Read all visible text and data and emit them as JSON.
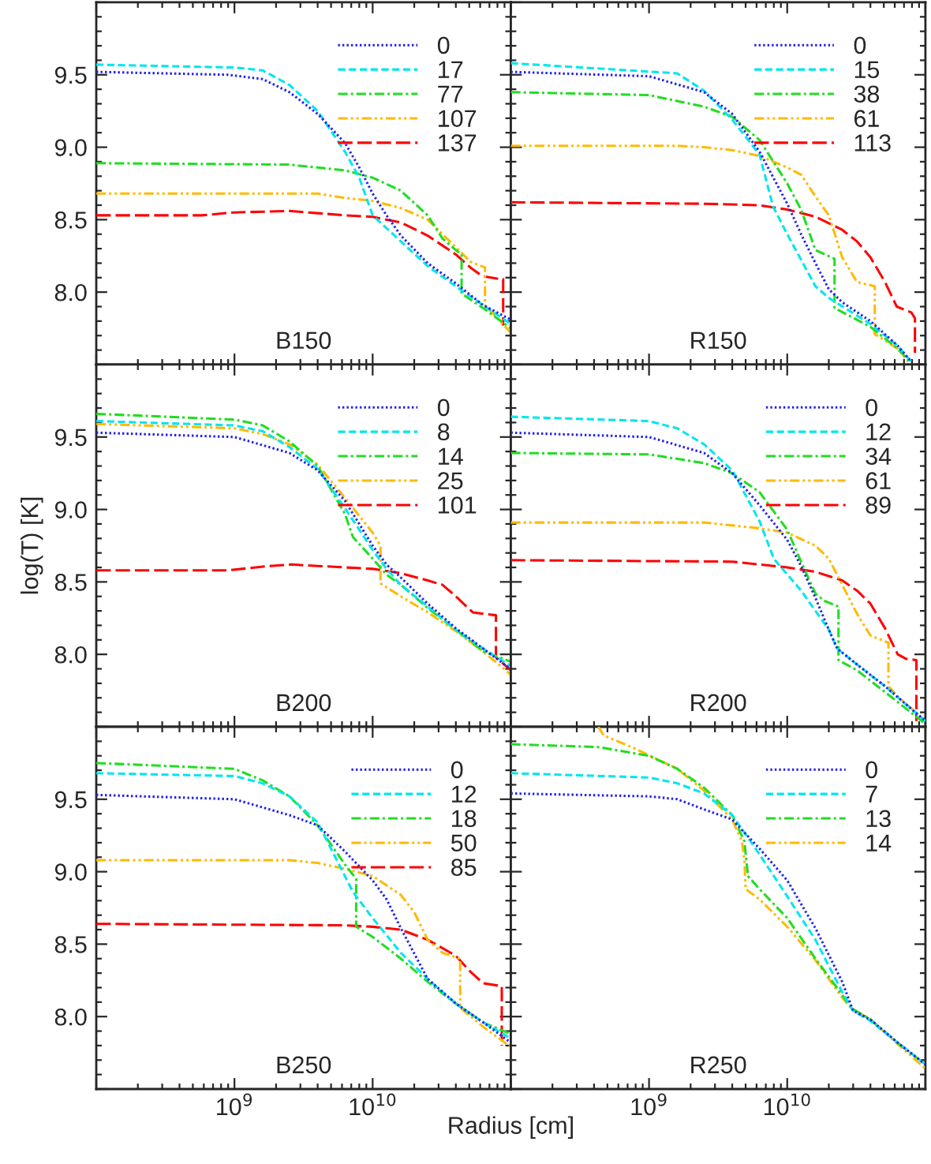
{
  "chart_data": [
    {
      "type": "line",
      "ylabel": null,
      "annotations": [
        "B150"
      ],
      "log": "x",
      "xlim": [
        100000000.0,
        100000000000.0
      ],
      "ylim": [
        7.5,
        10.0
      ],
      "xticks": [
        {
          "value": 100000000.0,
          "label": null
        },
        {
          "value": 1000000000.0,
          "label": null
        },
        {
          "value": 10000000000.0,
          "label": null
        },
        {
          "value": 100000000000.0,
          "label": null
        }
      ],
      "yticks": [
        {
          "value": 7.5,
          "label": null
        },
        {
          "value": 8.0,
          "label": "8.0"
        },
        {
          "value": 8.5,
          "label": "8.5"
        },
        {
          "value": 9.0,
          "label": "9.0"
        },
        {
          "value": 9.5,
          "label": "9.5"
        },
        {
          "value": 10.0,
          "label": null
        }
      ],
      "tick_labels": "y",
      "legend": "top right",
      "grid": false,
      "series": [
        {
          "name": "0",
          "color": "#2222ee",
          "line_style": "dotted",
          "x": [
            100000000.0,
            900000000.0,
            1600000000.0,
            2500000000.0,
            4000000000.0,
            6300000000.0,
            8000000000.0,
            10000000000.0,
            12600000000.0,
            16000000000.0,
            25000000000.0,
            40000000000.0,
            63000000000.0,
            100000000000.0
          ],
          "values": [
            9.52,
            9.5,
            9.47,
            9.38,
            9.23,
            9.03,
            8.86,
            8.68,
            8.53,
            8.39,
            8.2,
            8.06,
            7.91,
            7.81
          ]
        },
        {
          "name": "17",
          "color": "#00e5ee",
          "line_style": "dashed",
          "x": [
            100000000.0,
            1000000000.0,
            1600000000.0,
            2500000000.0,
            4000000000.0,
            6300000000.0,
            8000000000.0,
            10000000000.0,
            16000000000.0,
            25000000000.0,
            40000000000.0,
            63000000000.0,
            100000000000.0
          ],
          "values": [
            9.57,
            9.55,
            9.53,
            9.43,
            9.25,
            8.97,
            8.79,
            8.53,
            8.35,
            8.18,
            8.04,
            7.91,
            7.78
          ]
        },
        {
          "name": "77",
          "color": "#22dd22",
          "line_style": "dashdot",
          "x": [
            100000000.0,
            2500000000.0,
            6300000000.0,
            10000000000.0,
            16000000000.0,
            25000000000.0,
            32000000000.0,
            40000000000.0,
            44000000000.0,
            44000000000.0,
            63000000000.0,
            100000000000.0
          ],
          "values": [
            8.89,
            8.88,
            8.84,
            8.79,
            8.7,
            8.53,
            8.37,
            8.29,
            8.26,
            7.99,
            7.89,
            7.75
          ]
        },
        {
          "name": "107",
          "color": "#ffba00",
          "line_style": "dashdotdot",
          "x": [
            100000000.0,
            4000000000.0,
            6300000000.0,
            10000000000.0,
            16000000000.0,
            25000000000.0,
            32000000000.0,
            40000000000.0,
            51000000000.0,
            65000000000.0,
            65000000000.0,
            100000000000.0
          ],
          "values": [
            8.68,
            8.68,
            8.65,
            8.63,
            8.58,
            8.5,
            8.4,
            8.31,
            8.21,
            8.17,
            7.91,
            7.72
          ]
        },
        {
          "name": "137",
          "color": "#ff0000",
          "line_style": "longdash",
          "x": [
            100000000.0,
            580000000.0,
            1000000000.0,
            2500000000.0,
            6300000000.0,
            10000000000.0,
            16000000000.0,
            25000000000.0,
            40000000000.0,
            51000000000.0,
            62000000000.0,
            84000000000.0,
            88000000000.0,
            88000000000.0
          ],
          "values": [
            8.53,
            8.53,
            8.55,
            8.56,
            8.53,
            8.52,
            8.48,
            8.39,
            8.26,
            8.17,
            8.11,
            8.09,
            8.09,
            7.77
          ]
        }
      ]
    },
    {
      "type": "line",
      "annotations": [
        "R150"
      ],
      "log": "x",
      "xlim": [
        100000000.0,
        100000000000.0
      ],
      "ylim": [
        7.5,
        10.0
      ],
      "xticks": [
        {
          "value": 100000000.0,
          "label": null
        },
        {
          "value": 1000000000.0,
          "label": null
        },
        {
          "value": 10000000000.0,
          "label": null
        },
        {
          "value": 100000000000.0,
          "label": null
        }
      ],
      "yticks": [
        {
          "value": 7.5,
          "label": null
        },
        {
          "value": 8.0,
          "label": null
        },
        {
          "value": 8.5,
          "label": null
        },
        {
          "value": 9.0,
          "label": null
        },
        {
          "value": 9.5,
          "label": null
        },
        {
          "value": 10.0,
          "label": null
        }
      ],
      "tick_labels": false,
      "legend": "top right",
      "grid": false,
      "series": [
        {
          "name": "0",
          "color": "#2222ee",
          "line_style": "dotted",
          "x": [
            100000000.0,
            1000000000.0,
            2500000000.0,
            4000000000.0,
            6300000000.0,
            10000000000.0,
            12600000000.0,
            16000000000.0,
            20000000000.0,
            25000000000.0,
            40000000000.0,
            63000000000.0,
            79000000000.0
          ],
          "values": [
            9.52,
            9.49,
            9.38,
            9.23,
            8.97,
            8.61,
            8.4,
            8.2,
            8.02,
            7.93,
            7.8,
            7.63,
            7.52
          ]
        },
        {
          "name": "15",
          "color": "#00e5ee",
          "line_style": "dashed",
          "x": [
            100000000.0,
            1600000000.0,
            2500000000.0,
            4000000000.0,
            6300000000.0,
            7900000000.0,
            10000000000.0,
            16000000000.0,
            20000000000.0,
            40000000000.0,
            63000000000.0,
            79000000000.0
          ],
          "values": [
            9.58,
            9.51,
            9.39,
            9.19,
            8.95,
            8.59,
            8.4,
            8.04,
            7.96,
            7.78,
            7.63,
            7.52
          ]
        },
        {
          "name": "38",
          "color": "#22dd22",
          "line_style": "dashdot",
          "x": [
            100000000.0,
            1000000000.0,
            2500000000.0,
            4000000000.0,
            6300000000.0,
            10000000000.0,
            12600000000.0,
            16000000000.0,
            22000000000.0,
            22000000000.0,
            40000000000.0,
            63000000000.0,
            77000000000.0
          ],
          "values": [
            9.38,
            9.36,
            9.28,
            9.21,
            9.05,
            8.75,
            8.57,
            8.29,
            8.23,
            7.89,
            7.76,
            7.61,
            7.52
          ]
        },
        {
          "name": "61",
          "color": "#ffba00",
          "line_style": "dashdotdot",
          "x": [
            100000000.0,
            1600000000.0,
            2500000000.0,
            4000000000.0,
            6300000000.0,
            10000000000.0,
            12600000000.0,
            16000000000.0,
            20000000000.0,
            25000000000.0,
            32000000000.0,
            43000000000.0,
            43000000000.0,
            63000000000.0,
            75000000000.0
          ],
          "values": [
            9.01,
            9.01,
            9.0,
            8.98,
            8.94,
            8.86,
            8.81,
            8.66,
            8.53,
            8.24,
            8.07,
            8.04,
            7.71,
            7.61,
            7.52
          ]
        },
        {
          "name": "113",
          "color": "#ff0000",
          "line_style": "longdash",
          "x": [
            100000000.0,
            2500000000.0,
            6300000000.0,
            10000000000.0,
            16000000000.0,
            25000000000.0,
            32000000000.0,
            40000000000.0,
            51000000000.0,
            62000000000.0,
            79000000000.0,
            84000000000.0,
            84000000000.0
          ],
          "values": [
            8.62,
            8.61,
            8.6,
            8.57,
            8.52,
            8.43,
            8.35,
            8.24,
            8.07,
            7.9,
            7.86,
            7.82,
            7.58
          ]
        }
      ]
    },
    {
      "type": "line",
      "ylabel": "log(T) [K]",
      "annotations": [
        "B200"
      ],
      "log": "x",
      "xlim": [
        100000000.0,
        100000000000.0
      ],
      "ylim": [
        7.5,
        10.0
      ],
      "xticks": [
        {
          "value": 100000000.0,
          "label": null
        },
        {
          "value": 1000000000.0,
          "label": null
        },
        {
          "value": 10000000000.0,
          "label": null
        },
        {
          "value": 100000000000.0,
          "label": null
        }
      ],
      "yticks": [
        {
          "value": 7.5,
          "label": null
        },
        {
          "value": 8.0,
          "label": "8.0"
        },
        {
          "value": 8.5,
          "label": "8.5"
        },
        {
          "value": 9.0,
          "label": "9.0"
        },
        {
          "value": 9.5,
          "label": "9.5"
        },
        {
          "value": 10.0,
          "label": null
        }
      ],
      "tick_labels": "y",
      "legend": "top right",
      "grid": false,
      "series": [
        {
          "name": "0",
          "color": "#2222ee",
          "line_style": "dotted",
          "x": [
            100000000.0,
            1000000000.0,
            2500000000.0,
            4000000000.0,
            6300000000.0,
            10000000000.0,
            12600000000.0,
            16000000000.0,
            25000000000.0,
            40000000000.0,
            63000000000.0,
            96000000000.0
          ],
          "values": [
            9.53,
            9.5,
            9.39,
            9.27,
            9.06,
            8.75,
            8.62,
            8.53,
            8.35,
            8.18,
            8.04,
            7.91
          ]
        },
        {
          "name": "8",
          "color": "#00e5ee",
          "line_style": "dashed",
          "x": [
            100000000.0,
            1000000000.0,
            1600000000.0,
            2500000000.0,
            4000000000.0,
            6300000000.0,
            10000000000.0,
            12600000000.0,
            16000000000.0,
            25000000000.0,
            40000000000.0,
            63000000000.0,
            100000000000.0
          ],
          "values": [
            9.61,
            9.58,
            9.54,
            9.43,
            9.28,
            9.01,
            8.72,
            8.59,
            8.48,
            8.33,
            8.17,
            8.04,
            7.92
          ]
        },
        {
          "name": "14",
          "color": "#22dd22",
          "line_style": "dashdot",
          "x": [
            100000000.0,
            1000000000.0,
            1600000000.0,
            2500000000.0,
            4000000000.0,
            6300000000.0,
            7200000000.0,
            10000000000.0,
            12600000000.0,
            16000000000.0,
            25000000000.0,
            40000000000.0,
            63000000000.0,
            100000000000.0
          ],
          "values": [
            9.66,
            9.62,
            9.58,
            9.47,
            9.3,
            8.97,
            8.81,
            8.66,
            8.55,
            8.48,
            8.32,
            8.17,
            8.02,
            7.95
          ]
        },
        {
          "name": "25",
          "color": "#ffba00",
          "line_style": "dashdotdot",
          "x": [
            100000000.0,
            1000000000.0,
            1600000000.0,
            2500000000.0,
            4000000000.0,
            6300000000.0,
            10000000000.0,
            11400000000.0,
            11400000000.0,
            16000000000.0,
            25000000000.0,
            40000000000.0,
            63000000000.0,
            100000000000.0
          ],
          "values": [
            9.59,
            9.56,
            9.52,
            9.45,
            9.31,
            9.08,
            8.84,
            8.75,
            8.49,
            8.4,
            8.29,
            8.16,
            8.02,
            7.86
          ]
        },
        {
          "name": "101",
          "color": "#ff0000",
          "line_style": "longdash",
          "x": [
            100000000.0,
            900000000.0,
            1800000000.0,
            2600000000.0,
            4000000000.0,
            6300000000.0,
            10000000000.0,
            16000000000.0,
            25000000000.0,
            32000000000.0,
            40000000000.0,
            53000000000.0,
            63000000000.0,
            78000000000.0,
            78000000000.0,
            100000000000.0
          ],
          "values": [
            8.58,
            8.58,
            8.61,
            8.62,
            8.61,
            8.6,
            8.59,
            8.56,
            8.51,
            8.48,
            8.4,
            8.29,
            8.28,
            8.27,
            7.98,
            7.89
          ]
        }
      ]
    },
    {
      "type": "line",
      "annotations": [
        "R200"
      ],
      "log": "x",
      "xlim": [
        100000000.0,
        100000000000.0
      ],
      "ylim": [
        7.5,
        10.0
      ],
      "xticks": [
        {
          "value": 100000000.0,
          "label": null
        },
        {
          "value": 1000000000.0,
          "label": null
        },
        {
          "value": 10000000000.0,
          "label": null
        },
        {
          "value": 100000000000.0,
          "label": null
        }
      ],
      "yticks": [
        {
          "value": 7.5,
          "label": null
        },
        {
          "value": 8.0,
          "label": null
        },
        {
          "value": 8.5,
          "label": null
        },
        {
          "value": 9.0,
          "label": null
        },
        {
          "value": 9.5,
          "label": null
        },
        {
          "value": 10.0,
          "label": null
        }
      ],
      "tick_labels": false,
      "legend": "top right",
      "grid": false,
      "series": [
        {
          "name": "0",
          "color": "#2222ee",
          "line_style": "dotted",
          "x": [
            100000000.0,
            1000000000.0,
            2500000000.0,
            4000000000.0,
            6300000000.0,
            10000000000.0,
            12600000000.0,
            16000000000.0,
            20000000000.0,
            23000000000.0,
            32000000000.0,
            51000000000.0,
            100000000000.0
          ],
          "values": [
            9.53,
            9.5,
            9.39,
            9.25,
            9.03,
            8.79,
            8.61,
            8.39,
            8.17,
            8.04,
            7.93,
            7.78,
            7.54
          ]
        },
        {
          "name": "12",
          "color": "#00e5ee",
          "line_style": "dashed",
          "x": [
            100000000.0,
            1000000000.0,
            1600000000.0,
            2500000000.0,
            4000000000.0,
            6300000000.0,
            8000000000.0,
            12600000000.0,
            20000000000.0,
            23000000000.0,
            32000000000.0,
            51000000000.0,
            100000000000.0
          ],
          "values": [
            9.64,
            9.61,
            9.56,
            9.45,
            9.27,
            8.92,
            8.66,
            8.44,
            8.17,
            8.04,
            7.93,
            7.78,
            7.54
          ]
        },
        {
          "name": "34",
          "color": "#22dd22",
          "line_style": "dashdot",
          "x": [
            100000000.0,
            1000000000.0,
            2500000000.0,
            4000000000.0,
            6300000000.0,
            10000000000.0,
            12600000000.0,
            16000000000.0,
            18500000000.0,
            23500000000.0,
            23500000000.0,
            32000000000.0,
            51000000000.0,
            100000000000.0
          ],
          "values": [
            9.39,
            9.38,
            9.32,
            9.25,
            9.12,
            8.86,
            8.64,
            8.42,
            8.37,
            8.33,
            7.96,
            7.89,
            7.74,
            7.52
          ]
        },
        {
          "name": "61",
          "color": "#ffba00",
          "line_style": "dashdotdot",
          "x": [
            100000000.0,
            2500000000.0,
            4000000000.0,
            6300000000.0,
            10000000000.0,
            16000000000.0,
            20000000000.0,
            25000000000.0,
            32000000000.0,
            40000000000.0,
            54000000000.0,
            54000000000.0,
            63000000000.0,
            100000000000.0
          ],
          "values": [
            8.91,
            8.91,
            8.89,
            8.87,
            8.84,
            8.75,
            8.66,
            8.48,
            8.28,
            8.13,
            8.08,
            7.78,
            7.71,
            7.54
          ]
        },
        {
          "name": "89",
          "color": "#ff0000",
          "line_style": "longdash",
          "x": [
            100000000.0,
            4000000000.0,
            6300000000.0,
            10000000000.0,
            16000000000.0,
            25000000000.0,
            32000000000.0,
            40000000000.0,
            51000000000.0,
            63000000000.0,
            72000000000.0,
            86000000000.0,
            86000000000.0
          ],
          "values": [
            8.65,
            8.64,
            8.62,
            8.6,
            8.57,
            8.51,
            8.44,
            8.35,
            8.18,
            8.0,
            7.97,
            7.96,
            7.54
          ]
        }
      ]
    },
    {
      "type": "line",
      "xlabel": "Radius [cm]",
      "annotations": [
        "B250"
      ],
      "log": "x",
      "xlim": [
        100000000.0,
        100000000000.0
      ],
      "ylim": [
        7.5,
        10.0
      ],
      "xticks": [
        {
          "value": 100000000.0,
          "label": null
        },
        {
          "value": 1000000000.0,
          "label": "10$^{9}$"
        },
        {
          "value": 10000000000.0,
          "label": "10$^{10}$"
        },
        {
          "value": 100000000000.0,
          "label": null
        }
      ],
      "yticks": [
        {
          "value": 7.5,
          "label": null
        },
        {
          "value": 8.0,
          "label": "8.0"
        },
        {
          "value": 8.5,
          "label": "8.5"
        },
        {
          "value": 9.0,
          "label": "9.0"
        },
        {
          "value": 9.5,
          "label": "9.5"
        },
        {
          "value": 10.0,
          "label": null
        }
      ],
      "legend": "top right",
      "grid": false,
      "series": [
        {
          "name": "0",
          "color": "#2222ee",
          "line_style": "dotted",
          "x": [
            100000000.0,
            1000000000.0,
            2500000000.0,
            4000000000.0,
            6300000000.0,
            10000000000.0,
            12600000000.0,
            16000000000.0,
            25000000000.0,
            40000000000.0,
            63000000000.0,
            100000000000.0
          ],
          "values": [
            9.53,
            9.5,
            9.39,
            9.32,
            9.14,
            8.94,
            8.81,
            8.61,
            8.26,
            8.09,
            7.96,
            7.82
          ]
        },
        {
          "name": "12",
          "color": "#00e5ee",
          "line_style": "dashed",
          "x": [
            100000000.0,
            1000000000.0,
            1600000000.0,
            2500000000.0,
            4000000000.0,
            6300000000.0,
            7200000000.0,
            10000000000.0,
            16000000000.0,
            25000000000.0,
            40000000000.0,
            63000000000.0,
            100000000000.0
          ],
          "values": [
            9.68,
            9.66,
            9.61,
            9.52,
            9.34,
            8.97,
            8.86,
            8.68,
            8.44,
            8.26,
            8.09,
            7.96,
            7.85
          ]
        },
        {
          "name": "18",
          "color": "#22dd22",
          "line_style": "dashdot",
          "x": [
            100000000.0,
            1000000000.0,
            1600000000.0,
            2500000000.0,
            4000000000.0,
            6300000000.0,
            7600000000.0,
            7600000000.0,
            10000000000.0,
            16000000000.0,
            25000000000.0,
            40000000000.0,
            63000000000.0,
            100000000000.0
          ],
          "values": [
            9.75,
            9.71,
            9.63,
            9.52,
            9.32,
            9.05,
            8.95,
            8.62,
            8.55,
            8.4,
            8.24,
            8.09,
            7.96,
            7.88
          ]
        },
        {
          "name": "50",
          "color": "#ffba00",
          "line_style": "dashdotdot",
          "x": [
            100000000.0,
            2500000000.0,
            4000000000.0,
            6300000000.0,
            10000000000.0,
            16000000000.0,
            20000000000.0,
            25000000000.0,
            32000000000.0,
            43000000000.0,
            43000000000.0,
            63000000000.0,
            100000000000.0
          ],
          "values": [
            9.08,
            9.08,
            9.06,
            9.02,
            8.97,
            8.84,
            8.72,
            8.53,
            8.44,
            8.4,
            8.06,
            7.93,
            7.79
          ]
        },
        {
          "name": "85",
          "color": "#ff0000",
          "line_style": "longdash",
          "x": [
            100000000.0,
            6300000000.0,
            10000000000.0,
            16000000000.0,
            25000000000.0,
            40000000000.0,
            51000000000.0,
            63000000000.0,
            86000000000.0,
            86000000000.0
          ],
          "values": [
            8.64,
            8.63,
            8.62,
            8.6,
            8.53,
            8.42,
            8.31,
            8.23,
            8.21,
            7.8
          ]
        }
      ]
    },
    {
      "type": "line",
      "annotations": [
        "R250"
      ],
      "log": "x",
      "xlim": [
        100000000.0,
        100000000000.0
      ],
      "ylim": [
        7.5,
        10.0
      ],
      "xticks": [
        {
          "value": 100000000.0,
          "label": null
        },
        {
          "value": 1000000000.0,
          "label": "10$^{9}$"
        },
        {
          "value": 10000000000.0,
          "label": "10$^{10}$"
        },
        {
          "value": 100000000000.0,
          "label": null
        }
      ],
      "yticks": [
        {
          "value": 7.5,
          "label": null
        },
        {
          "value": 8.0,
          "label": null
        },
        {
          "value": 8.5,
          "label": null
        },
        {
          "value": 9.0,
          "label": null
        },
        {
          "value": 9.5,
          "label": null
        },
        {
          "value": 10.0,
          "label": null
        }
      ],
      "tick_labels": "x",
      "legend": "top right",
      "grid": false,
      "series": [
        {
          "name": "0",
          "color": "#2222ee",
          "line_style": "dotted",
          "x": [
            100000000.0,
            1000000000.0,
            1600000000.0,
            2500000000.0,
            4000000000.0,
            6300000000.0,
            10000000000.0,
            16000000000.0,
            25000000000.0,
            30000000000.0,
            40000000000.0,
            63000000000.0,
            100000000000.0
          ],
          "values": [
            9.54,
            9.52,
            9.5,
            9.43,
            9.36,
            9.16,
            8.94,
            8.61,
            8.24,
            8.04,
            7.98,
            7.82,
            7.67
          ]
        },
        {
          "name": "7",
          "color": "#00e5ee",
          "line_style": "dashed",
          "x": [
            100000000.0,
            1000000000.0,
            1600000000.0,
            2500000000.0,
            4000000000.0,
            6300000000.0,
            10000000000.0,
            16000000000.0,
            25000000000.0,
            30000000000.0,
            40000000000.0,
            63000000000.0,
            100000000000.0
          ],
          "values": [
            9.68,
            9.65,
            9.61,
            9.54,
            9.39,
            9.12,
            8.83,
            8.53,
            8.17,
            8.04,
            7.97,
            7.82,
            7.67
          ]
        },
        {
          "name": "13",
          "color": "#22dd22",
          "line_style": "dashdot",
          "x": [
            100000000.0,
            430000000.0,
            1000000000.0,
            1600000000.0,
            2500000000.0,
            4000000000.0,
            4900000000.0,
            5200000000.0,
            6300000000.0,
            10000000000.0,
            16000000000.0,
            25000000000.0,
            29000000000.0,
            40000000000.0,
            63000000000.0,
            100000000000.0
          ],
          "values": [
            9.88,
            9.86,
            9.8,
            9.71,
            9.58,
            9.39,
            9.21,
            8.97,
            8.88,
            8.68,
            8.4,
            8.15,
            8.06,
            7.98,
            7.82,
            7.67
          ]
        },
        {
          "name": "14",
          "color": "#ffba00",
          "line_style": "dashdotdot",
          "x": [
            430000000.0,
            470000000.0,
            790000000.0,
            1600000000.0,
            2500000000.0,
            4000000000.0,
            4700000000.0,
            4900000000.0,
            5000000000.0,
            6300000000.0,
            10000000000.0,
            16000000000.0,
            25000000000.0,
            29000000000.0,
            40000000000.0,
            63000000000.0,
            100000000000.0
          ],
          "values": [
            10.0,
            9.94,
            9.85,
            9.71,
            9.56,
            9.36,
            9.21,
            9.08,
            8.88,
            8.81,
            8.62,
            8.39,
            8.13,
            8.06,
            7.98,
            7.81,
            7.64
          ]
        }
      ]
    }
  ]
}
